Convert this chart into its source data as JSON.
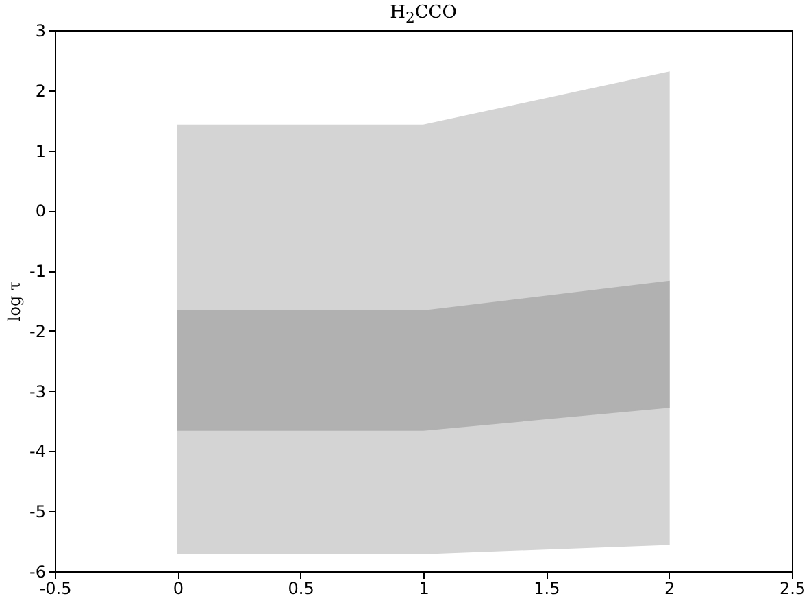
{
  "chart_data": {
    "type": "area",
    "title": "H$_{2}$CCO",
    "ylabel": "log τ",
    "series": [
      {
        "color": "#d4d4d4",
        "x": [
          0,
          1,
          2
        ],
        "values": [
          null,
          null,
          null
        ],
        "lower": [
          -5.7,
          -5.7,
          -5.55
        ],
        "upper": [
          1.42,
          1.42,
          2.3
        ]
      },
      {
        "color": "#b1b1b1",
        "x": [
          0,
          1,
          2
        ],
        "values": [
          null,
          null,
          null
        ],
        "lower": [
          -3.65,
          -3.65,
          -3.27
        ],
        "upper": [
          -1.67,
          -1.67,
          -1.18
        ]
      }
    ],
    "xlim": [
      -0.5,
      2.5
    ],
    "xticks": [
      -0.5,
      0,
      0.5,
      1,
      1.5,
      2,
      2.5
    ],
    "ylim": [
      -6,
      3
    ],
    "yticks": [
      -6,
      -5,
      -4,
      -3,
      -2,
      -1,
      0,
      1,
      2,
      3
    ],
    "grid": false
  }
}
